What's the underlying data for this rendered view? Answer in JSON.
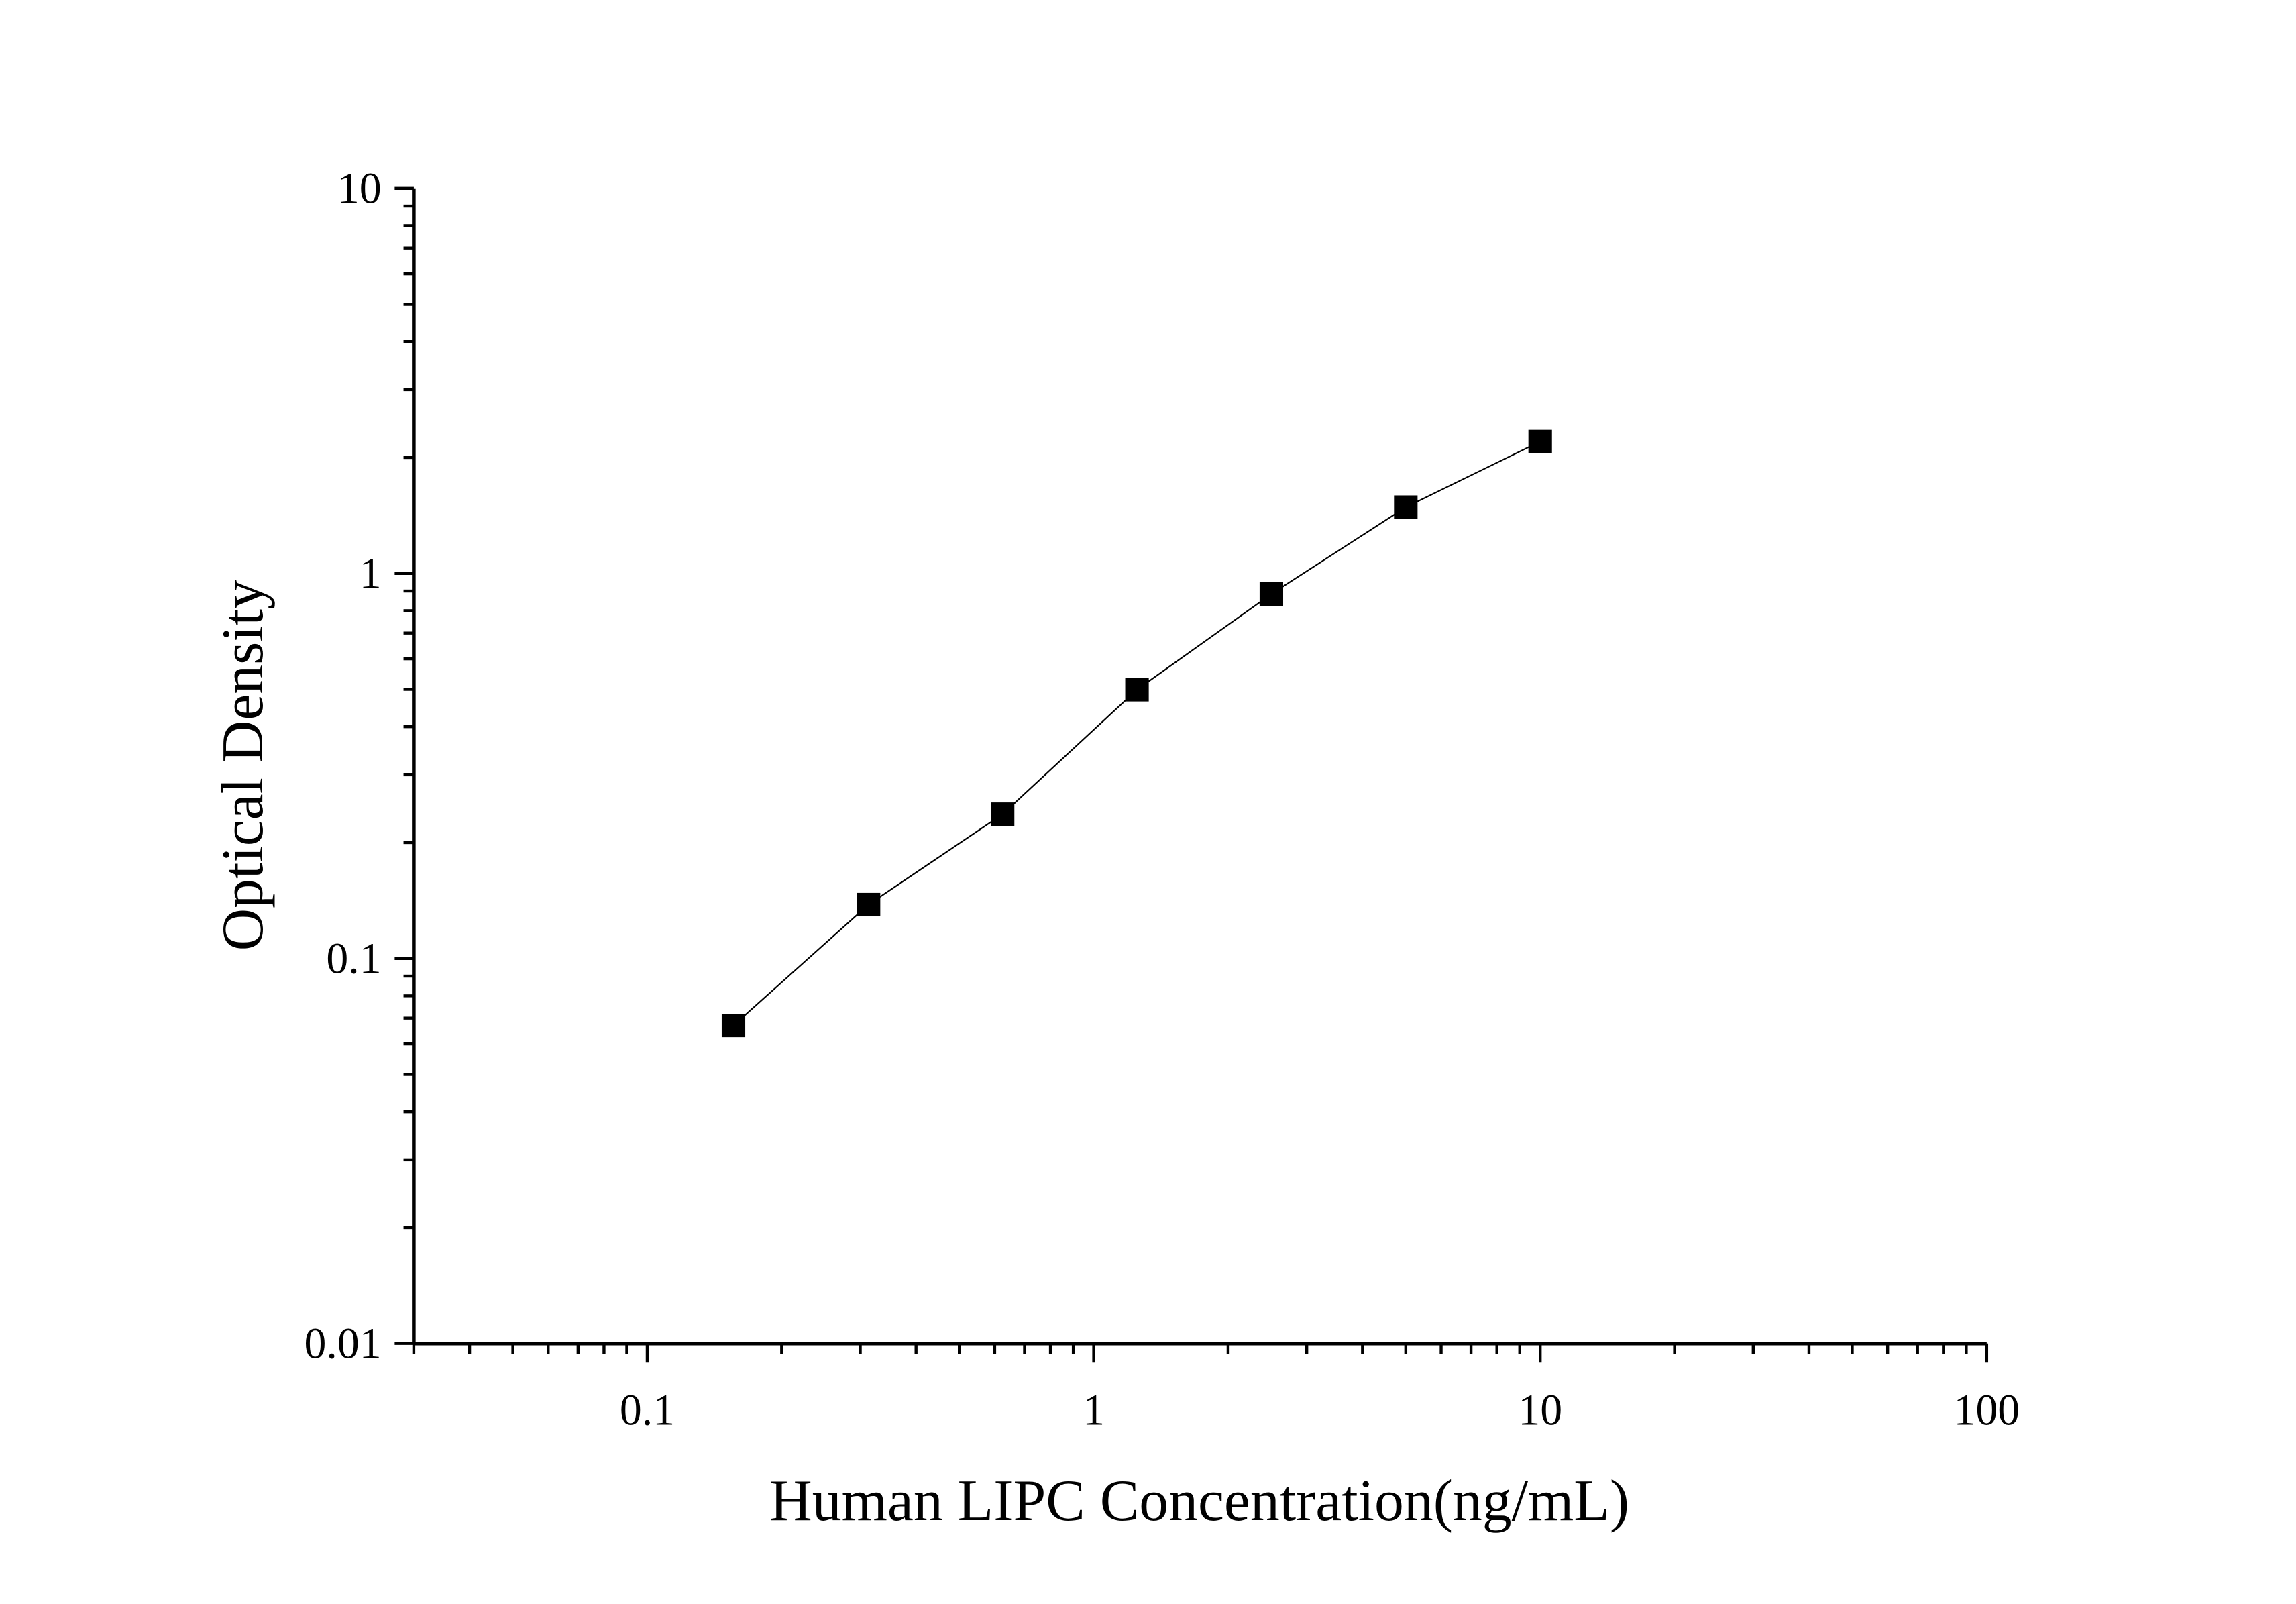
{
  "chart_data": {
    "type": "line",
    "title": "",
    "xlabel": "Human LIPC Concentration(ng/mL)",
    "ylabel": "Optical Density",
    "xscale": "log",
    "yscale": "log",
    "xlim": [
      0.03,
      100
    ],
    "ylim": [
      0.01,
      10
    ],
    "xticks": [
      0.1,
      1,
      10,
      100
    ],
    "xtick_labels": [
      "0.1",
      "1",
      "10",
      "100"
    ],
    "yticks": [
      0.01,
      0.1,
      1,
      10
    ],
    "ytick_labels": [
      "0.01",
      "0.1",
      "1",
      "10"
    ],
    "grid": false,
    "legend": "none",
    "marker": "square",
    "color": "#000000",
    "series": [
      {
        "x": [
          0.156,
          0.313,
          0.625,
          1.25,
          2.5,
          5,
          10
        ],
        "y": [
          0.067,
          0.138,
          0.237,
          0.499,
          0.884,
          1.486,
          2.2
        ]
      }
    ]
  }
}
